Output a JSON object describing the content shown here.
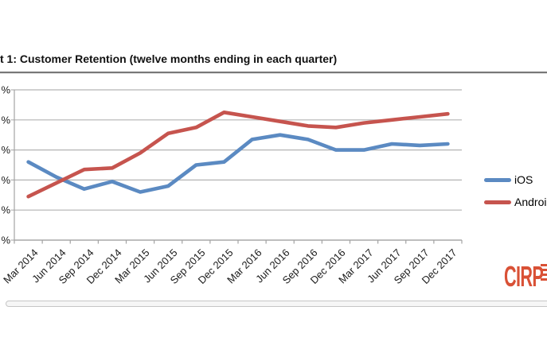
{
  "page": {
    "title_visible": "t 1: Customer Retention (twelve months ending in each quarter)"
  },
  "chart_data": {
    "type": "line",
    "title": "t 1: Customer Retention (twelve months ending in each quarter)",
    "categories": [
      "Mar 2014",
      "Jun 2014",
      "Sep 2014",
      "Dec 2014",
      "Mar 2015",
      "Jun 2015",
      "Sep 2015",
      "Dec 2015",
      "Mar 2016",
      "Jun 2016",
      "Sep 2016",
      "Dec 2016",
      "Mar 2017",
      "Jun 2017",
      "Sep 2017",
      "Dec 2017"
    ],
    "series": [
      {
        "name": "iOS",
        "color": "#5b8ac2",
        "values": [
          76,
          71,
          67,
          69.5,
          66,
          68,
          75,
          76,
          83.5,
          85,
          83.5,
          80,
          80,
          82,
          81.5,
          82
        ]
      },
      {
        "name": "Android",
        "color": "#c6544e",
        "values": [
          64.5,
          69,
          73.5,
          74,
          79,
          85.5,
          87.5,
          92.5,
          91,
          89.5,
          88,
          87.5,
          89,
          90,
          91,
          92
        ]
      }
    ],
    "ylim": [
      50,
      100
    ],
    "y_gridline_step": 10,
    "y_tick_labels_visible": [
      "%",
      "%",
      "%",
      "%",
      "%",
      "%"
    ],
    "grid": true,
    "legend_position": "right",
    "grid_color": "#b3b3b3",
    "axis_color": "#a3a3a3"
  },
  "legend": {
    "ios_label": "iOS",
    "android_label": "Android"
  },
  "logo": {
    "text": "CIRP",
    "color": "#d95136"
  }
}
